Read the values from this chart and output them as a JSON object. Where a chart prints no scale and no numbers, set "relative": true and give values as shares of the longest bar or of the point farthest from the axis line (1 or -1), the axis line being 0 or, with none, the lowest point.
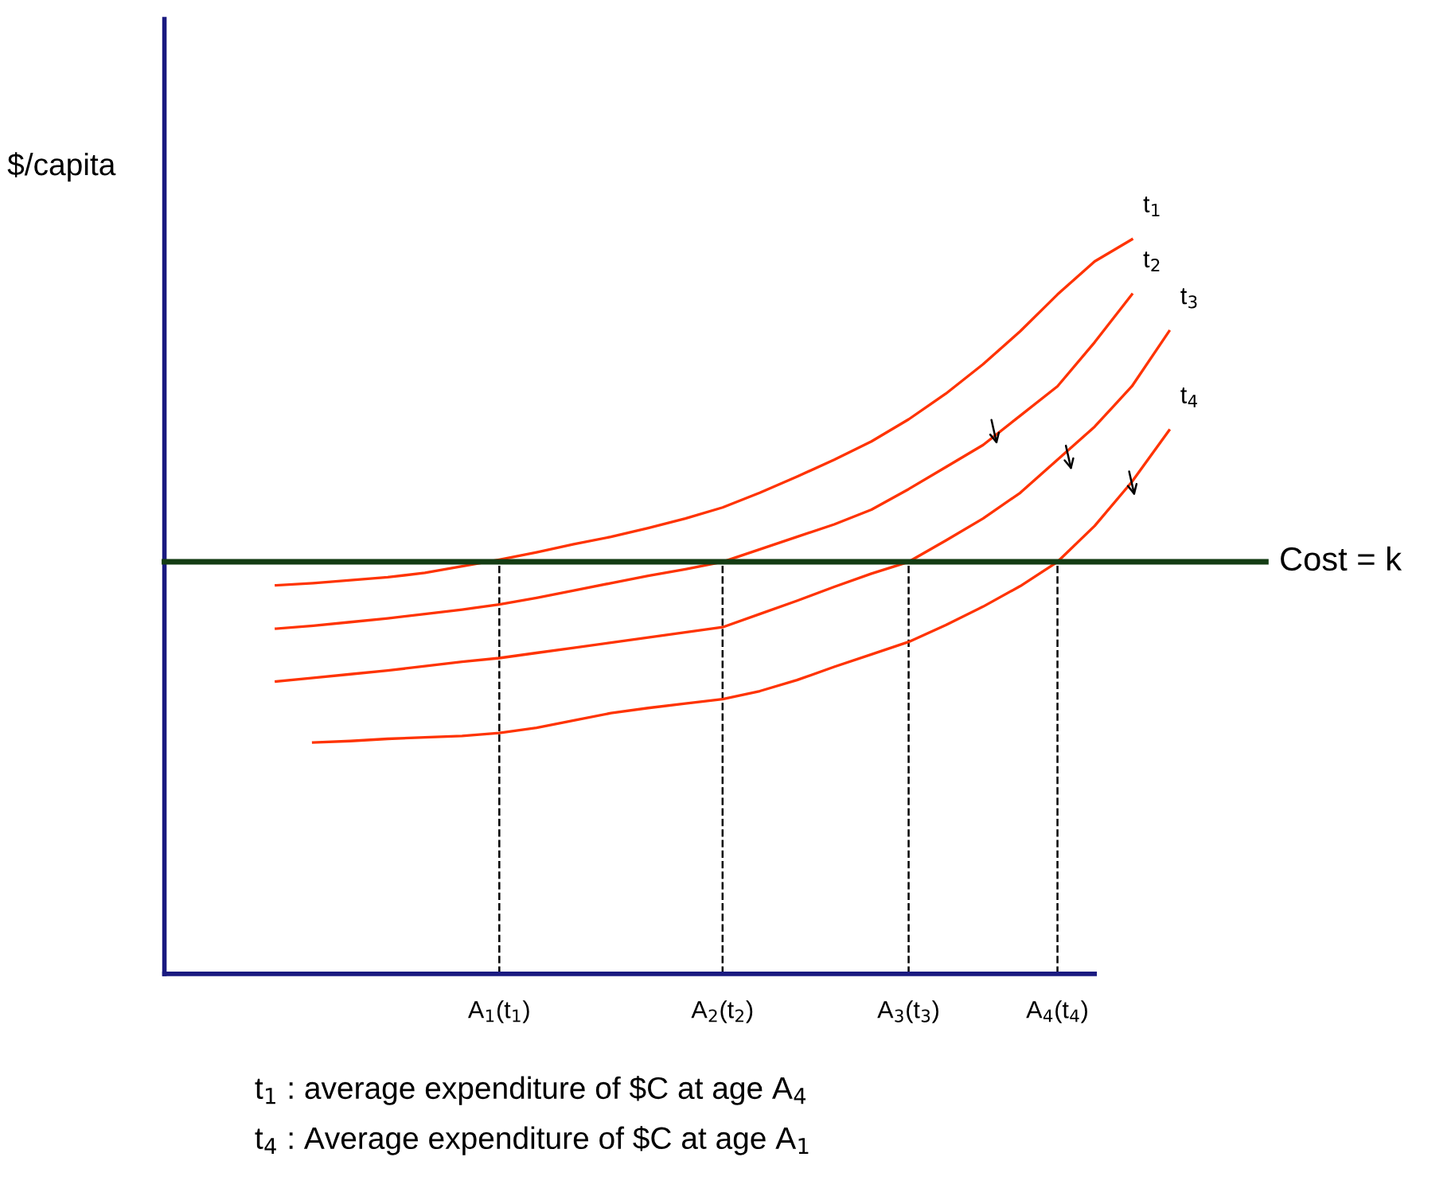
{
  "chart_data": {
    "type": "line",
    "relative": true,
    "ylabel": "$/capita",
    "marker": "none",
    "line_style": "solid",
    "categories": [
      null,
      null,
      null,
      null,
      null,
      null,
      null,
      null,
      null,
      "A$_{1}$(t$_{1}$)",
      null,
      null,
      null,
      null,
      null,
      "A$_{2}$(t$_{2}$)",
      null,
      null,
      null,
      null,
      "A$_{3}$(t$_{3}$)",
      null,
      null,
      null,
      "A$_{4}$(t$_{4}$)",
      null,
      null,
      null
    ],
    "series": [
      {
        "name": "t$_{1}$",
        "color": "#ff3300",
        "values": [
          null,
          null,
          null,
          0.529,
          0.532,
          0.536,
          0.54,
          0.546,
          0.555,
          0.564,
          0.574,
          0.585,
          0.595,
          0.607,
          0.62,
          0.635,
          0.655,
          0.677,
          0.7,
          0.725,
          0.755,
          0.79,
          0.83,
          0.875,
          0.925,
          0.97,
          1.0,
          null
        ]
      },
      {
        "name": "t$_{2}$",
        "color": "#ff3300",
        "values": [
          null,
          null,
          null,
          0.47,
          0.474,
          0.479,
          0.484,
          0.49,
          0.496,
          0.503,
          0.512,
          0.522,
          0.532,
          0.542,
          0.551,
          0.561,
          0.578,
          0.595,
          0.612,
          0.632,
          0.66,
          0.69,
          0.72,
          0.76,
          0.8,
          0.86,
          0.925,
          null
        ]
      },
      {
        "name": "t$_{3}$",
        "color": "#ff3300",
        "values": [
          null,
          null,
          null,
          0.398,
          0.403,
          0.408,
          0.413,
          0.419,
          0.425,
          0.43,
          0.437,
          0.444,
          0.451,
          0.458,
          0.465,
          0.472,
          0.49,
          0.508,
          0.527,
          0.545,
          0.561,
          0.59,
          0.62,
          0.655,
          0.7,
          0.745,
          0.8,
          0.875
        ]
      },
      {
        "name": "t$_{4}$",
        "color": "#ff3300",
        "values": [
          null,
          null,
          null,
          null,
          0.315,
          0.317,
          0.32,
          0.322,
          0.324,
          0.328,
          0.335,
          0.345,
          0.355,
          0.362,
          0.368,
          0.374,
          0.385,
          0.4,
          0.418,
          0.435,
          0.452,
          0.475,
          0.5,
          0.528,
          0.561,
          0.61,
          0.67,
          0.74
        ]
      }
    ],
    "ref_lines": [
      {
        "axis": "y",
        "value": 0.561,
        "label": "Cost = k",
        "color": "#143d14",
        "line_style": "solid"
      },
      {
        "axis": "x",
        "value": "A$_{1}$(t$_{1}$)",
        "color": "#000000",
        "line_style": "dashed"
      },
      {
        "axis": "x",
        "value": "A$_{2}$(t$_{2}$)",
        "color": "#000000",
        "line_style": "dashed"
      },
      {
        "axis": "x",
        "value": "A$_{3}$(t$_{3}$)",
        "color": "#000000",
        "line_style": "dashed"
      },
      {
        "axis": "x",
        "value": "A$_{4}$(t$_{4}$)",
        "color": "#000000",
        "line_style": "dashed"
      }
    ],
    "annotations": [
      "t$_{1}$ : average expenditure of $C at age A$_{4}$",
      "t$_{4}$ : Average expenditure of $C at age A$_{1}$"
    ]
  }
}
